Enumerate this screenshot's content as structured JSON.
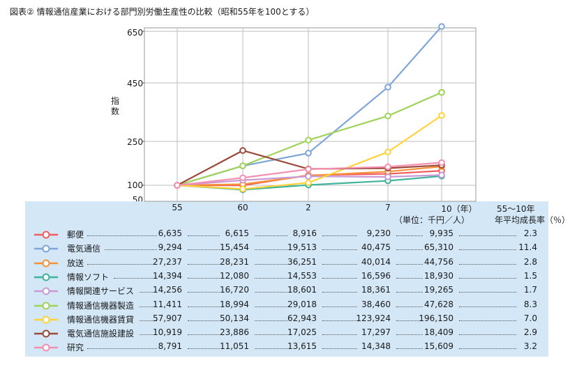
{
  "title": "図表② 情報通信産業における部門別労働生産性の比較（昭和55年を100とする）",
  "chart_data": {
    "type": "line",
    "title": "図表② 情報通信産業における部門別労働生産性の比較（昭和55年を100とする）",
    "ylabel": "指数",
    "yticks": [
      "650",
      "450",
      "250",
      "100",
      "50"
    ],
    "ylim": [
      50,
      650
    ],
    "categories": [
      "55",
      "60",
      "2",
      "7",
      "10（年）"
    ],
    "unit_note": "（単位：千円／人）",
    "rate_header": "55〜10年 年平均成長率（％）",
    "series": [
      {
        "name": "郵便",
        "color": "#f25c5c",
        "values": [
          "6,635",
          "6,615",
          "8,916",
          "9,230",
          "9,935"
        ],
        "index": [
          100,
          99.7,
          134.4,
          139.1,
          149.7
        ],
        "rate": "2.3"
      },
      {
        "name": "電気通信",
        "color": "#7fa6d8",
        "values": [
          "9,294",
          "15,454",
          "19,513",
          "40,475",
          "65,310"
        ],
        "index": [
          100,
          166.3,
          210.0,
          435.5,
          702.7
        ],
        "rate": "11.4"
      },
      {
        "name": "放送",
        "color": "#f5913a",
        "values": [
          "27,237",
          "28,231",
          "36,251",
          "40,014",
          "44,756"
        ],
        "index": [
          100,
          103.6,
          133.1,
          146.9,
          164.3
        ],
        "rate": "2.8"
      },
      {
        "name": "情報ソフト",
        "color": "#3fb39a",
        "values": [
          "14,394",
          "12,080",
          "14,553",
          "16,596",
          "18,930"
        ],
        "index": [
          100,
          83.9,
          101.1,
          115.3,
          131.5
        ],
        "rate": "1.5"
      },
      {
        "name": "情報関連サービス",
        "color": "#c99ad6",
        "values": [
          "14,256",
          "16,720",
          "18,601",
          "18,361",
          "19,265"
        ],
        "index": [
          100,
          117.3,
          130.5,
          128.8,
          135.1
        ],
        "rate": "1.7"
      },
      {
        "name": "情報通信機器製造",
        "color": "#9fd35a",
        "values": [
          "11,411",
          "18,994",
          "29,018",
          "38,460",
          "47,628"
        ],
        "index": [
          100,
          166.5,
          254.3,
          337.0,
          417.4
        ],
        "rate": "8.3"
      },
      {
        "name": "情報通信機器賃貸",
        "color": "#ffd23a",
        "values": [
          "57,907",
          "50,134",
          "62,943",
          "123,924",
          "196,150"
        ],
        "index": [
          100,
          86.6,
          108.7,
          214.0,
          338.7
        ],
        "rate": "7.0"
      },
      {
        "name": "電気通信施設建設",
        "color": "#9b4a3a",
        "values": [
          "10,919",
          "23,886",
          "17,025",
          "17,297",
          "18,409"
        ],
        "index": [
          100,
          218.8,
          155.9,
          158.4,
          168.6
        ],
        "rate": "2.9"
      },
      {
        "name": "研究",
        "color": "#f58fb0",
        "values": [
          "8,791",
          "11,051",
          "13,615",
          "14,348",
          "15,609"
        ],
        "index": [
          100,
          125.7,
          154.9,
          163.2,
          177.6
        ],
        "rate": "3.2"
      }
    ]
  }
}
